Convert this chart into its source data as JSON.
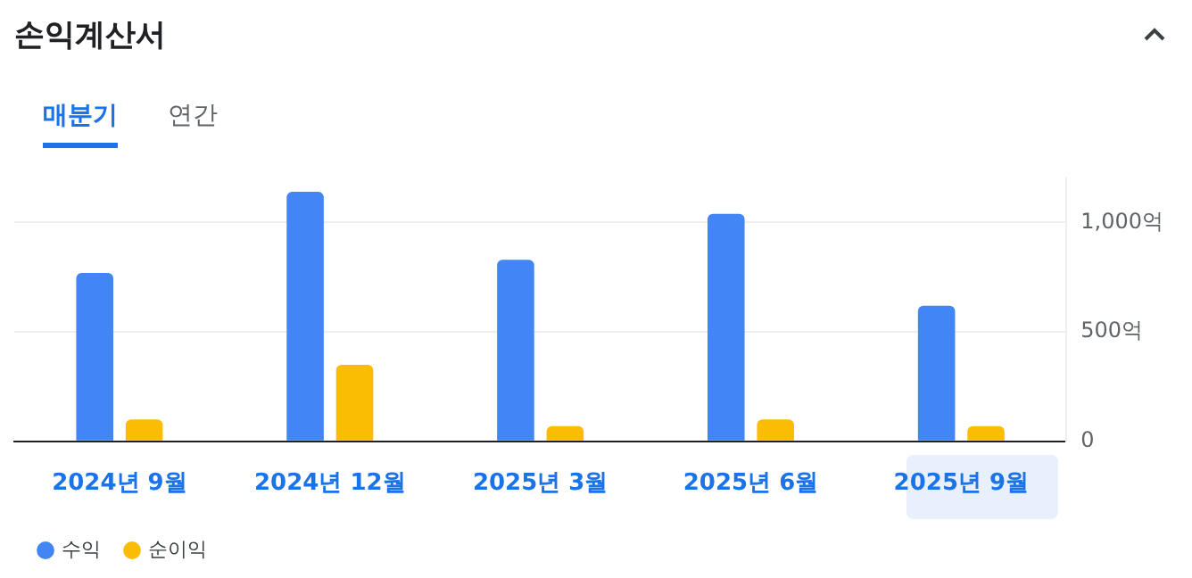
{
  "chart_data": {
    "type": "bar",
    "title": "손익계산서",
    "annotations": [
      "매분기",
      "연간"
    ],
    "categories": [
      "2024년 9월",
      "2024년 12월",
      "2025년 3월",
      "2025년 6월",
      "2025년 9월"
    ],
    "series": [
      {
        "name": "수익",
        "color": "#4285f4",
        "values": [
          770,
          1140,
          830,
          1040,
          620
        ]
      },
      {
        "name": "순이익",
        "color": "#fbbc04",
        "values": [
          100,
          350,
          70,
          100,
          70
        ]
      }
    ],
    "ylim": [
      0,
      1200
    ],
    "yticks": [
      0,
      {
        "value": 500,
        "label": "500억"
      },
      {
        "value": 1000,
        "label": "1,000억"
      }
    ],
    "grid": "y",
    "legend": "bottom left"
  }
}
